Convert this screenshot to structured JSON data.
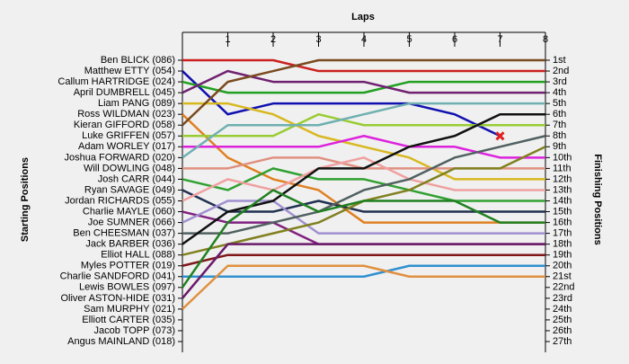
{
  "chart_data": {
    "type": "lap",
    "title": "Laps",
    "y_label": "Starting Positions",
    "y2_label": "Finishing Positions",
    "x": [
      0,
      1,
      2,
      3,
      4,
      5,
      6,
      7,
      8
    ],
    "xlim": [
      0,
      8
    ],
    "xticks": [
      1,
      2,
      3,
      4,
      5,
      6,
      7,
      8
    ],
    "ylim": [
      1,
      27
    ],
    "y2ticks": [
      {
        "value": 1,
        "label": "1st"
      },
      {
        "value": 2,
        "label": "2nd"
      },
      {
        "value": 3,
        "label": "3rd"
      },
      {
        "value": 4,
        "label": "4th"
      },
      {
        "value": 5,
        "label": "5th"
      },
      {
        "value": 6,
        "label": "6th"
      },
      {
        "value": 7,
        "label": "7th"
      },
      {
        "value": 8,
        "label": "8th"
      },
      {
        "value": 9,
        "label": "9th"
      },
      {
        "value": 10,
        "label": "10th"
      },
      {
        "value": 11,
        "label": "11th"
      },
      {
        "value": 12,
        "label": "12th"
      },
      {
        "value": 13,
        "label": "13th"
      },
      {
        "value": 14,
        "label": "14th"
      },
      {
        "value": 15,
        "label": "15th"
      },
      {
        "value": 16,
        "label": "16th"
      },
      {
        "value": 17,
        "label": "17th"
      },
      {
        "value": 18,
        "label": "18th"
      },
      {
        "value": 19,
        "label": "19th"
      },
      {
        "value": 20,
        "label": "20th"
      },
      {
        "value": 21,
        "label": "21st"
      },
      {
        "value": 22,
        "label": "22nd"
      },
      {
        "value": 23,
        "label": "23rd"
      },
      {
        "value": 24,
        "label": "24th"
      },
      {
        "value": 25,
        "label": "25th"
      },
      {
        "value": 26,
        "label": "26th"
      },
      {
        "value": 27,
        "label": "27th"
      }
    ],
    "series": [
      {
        "name": "Ben BLICK (086)",
        "color": "#cc2020",
        "values": [
          1,
          1,
          1,
          2,
          2,
          2,
          2,
          2,
          2
        ]
      },
      {
        "name": "Matthew ETTY (054)",
        "color": "#1010b0",
        "values": [
          2,
          6,
          5,
          5,
          5,
          5,
          6,
          8,
          null
        ],
        "retired": true
      },
      {
        "name": "Callum HARTRIDGE (024)",
        "color": "#20a020",
        "values": [
          3,
          4,
          4,
          4,
          4,
          3,
          3,
          3,
          3
        ]
      },
      {
        "name": "April DUMBRELL (045)",
        "color": "#702070",
        "values": [
          4,
          2,
          3,
          3,
          3,
          4,
          4,
          4,
          4
        ]
      },
      {
        "name": "Liam PANG (089)",
        "color": "#d8b820",
        "values": [
          5,
          5,
          6,
          8,
          9,
          10,
          12,
          12,
          12
        ]
      },
      {
        "name": "Ross WILDMAN (023)",
        "color": "#e08020",
        "values": [
          6,
          10,
          12,
          13,
          16,
          16,
          16,
          16,
          16
        ]
      },
      {
        "name": "Kieran GIFFORD (058)",
        "color": "#7a4a20",
        "values": [
          7,
          3,
          2,
          1,
          1,
          1,
          1,
          1,
          1
        ]
      },
      {
        "name": "Luke GRIFFEN (057)",
        "color": "#99cc33",
        "values": [
          8,
          8,
          8,
          6,
          7,
          7,
          7,
          7,
          7
        ]
      },
      {
        "name": "Adam WORLEY (017)",
        "color": "#dd22dd",
        "values": [
          9,
          9,
          9,
          9,
          8,
          9,
          9,
          10,
          10
        ]
      },
      {
        "name": "Joshua FORWARD (020)",
        "color": "#70b0b0",
        "values": [
          10,
          7,
          7,
          7,
          6,
          5,
          5,
          5,
          5
        ]
      },
      {
        "name": "Will DOWLING (048)",
        "color": "#e09080",
        "values": [
          11,
          11,
          10,
          10,
          11,
          11,
          11,
          11,
          11
        ]
      },
      {
        "name": "Josh CARR (044)",
        "color": "#30a030",
        "values": [
          12,
          13,
          11,
          12,
          12,
          13,
          14,
          14,
          14
        ]
      },
      {
        "name": "Ryan SAVAGE (049)",
        "color": "#203050",
        "values": [
          13,
          15,
          15,
          14,
          15,
          15,
          15,
          15,
          15
        ]
      },
      {
        "name": "Jordan RICHARDS (055)",
        "color": "#f0a0a0",
        "values": [
          14,
          12,
          13,
          11,
          10,
          12,
          13,
          13,
          13
        ]
      },
      {
        "name": "Charlie MAYLE (060)",
        "color": "#802080",
        "values": [
          15,
          16,
          16,
          18,
          18,
          18,
          18,
          18,
          18
        ]
      },
      {
        "name": "Joe SUMNER (066)",
        "color": "#a090d0",
        "values": [
          16,
          14,
          14,
          17,
          17,
          17,
          17,
          17,
          17
        ]
      },
      {
        "name": "Ben CHEESMAN (037)",
        "color": "#506060",
        "values": [
          17,
          17,
          16,
          15,
          13,
          12,
          10,
          9,
          8
        ]
      },
      {
        "name": "Jack BARBER (036)",
        "color": "#111111",
        "values": [
          18,
          15,
          14,
          11,
          11,
          9,
          8,
          6,
          6
        ]
      },
      {
        "name": "Elliot HALL (088)",
        "color": "#808020",
        "values": [
          19,
          18,
          17,
          16,
          14,
          13,
          11,
          11,
          9
        ]
      },
      {
        "name": "Myles POTTER (019)",
        "color": "#801818",
        "values": [
          20,
          19,
          19,
          19,
          19,
          19,
          19,
          19,
          19
        ]
      },
      {
        "name": "Charlie SANDFORD (041)",
        "color": "#3090d0",
        "values": [
          21,
          21,
          21,
          21,
          21,
          20,
          20,
          20,
          20
        ]
      },
      {
        "name": "Lewis BOWLES (097)",
        "color": "#208020",
        "values": [
          22,
          16,
          13,
          15,
          14,
          14,
          14,
          16,
          16
        ]
      },
      {
        "name": "Oliver ASTON-HIDE (031)",
        "color": "#6a1a6a",
        "values": [
          23,
          18,
          18,
          18,
          18,
          18,
          18,
          18,
          18
        ]
      },
      {
        "name": "Sam MURPHY (021)",
        "color": "#e09040",
        "values": [
          24,
          20,
          20,
          20,
          20,
          21,
          21,
          21,
          21
        ]
      },
      {
        "name": "Elliott CARTER (035)",
        "color": "#888888",
        "values": [
          25,
          null,
          null,
          null,
          null,
          null,
          null,
          null,
          null
        ]
      },
      {
        "name": "Jacob TOPP (073)",
        "color": "#888888",
        "values": [
          26,
          null,
          null,
          null,
          null,
          null,
          null,
          null,
          null
        ]
      },
      {
        "name": "Angus MAINLAND (018)",
        "color": "#888888",
        "values": [
          27,
          null,
          null,
          null,
          null,
          null,
          null,
          null,
          null
        ]
      }
    ]
  }
}
